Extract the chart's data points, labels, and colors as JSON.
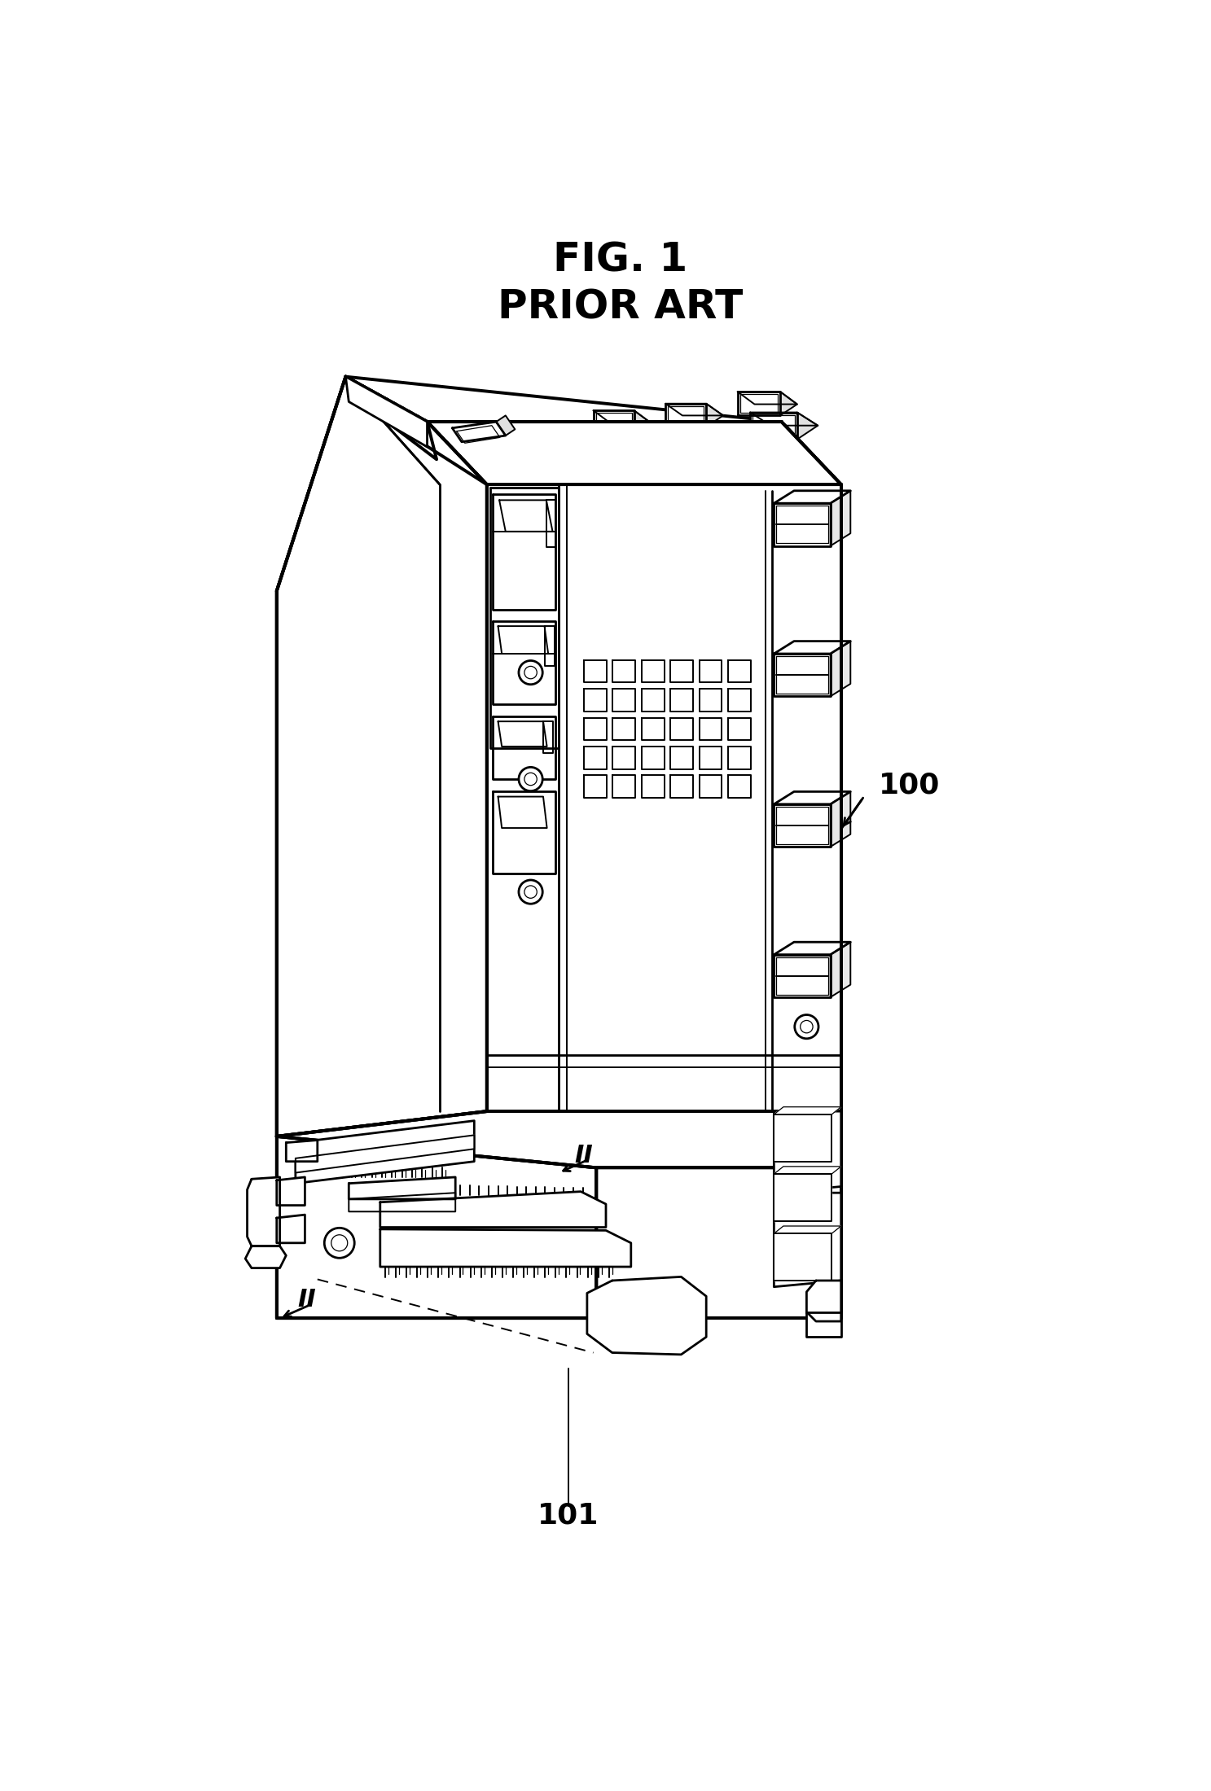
{
  "title_line1": "FIG. 1",
  "title_line2": "PRIOR ART",
  "label_100": "100",
  "label_101": "101",
  "label_II": "II",
  "bg_color": "#ffffff",
  "line_color": "#000000",
  "title_fontsize": 36,
  "label_fontsize": 26,
  "fig_width": 14.87,
  "fig_height": 22.0,
  "dpi": 100,
  "lw_thick": 2.8,
  "lw_med": 2.0,
  "lw_thin": 1.4,
  "lw_hair": 0.9
}
